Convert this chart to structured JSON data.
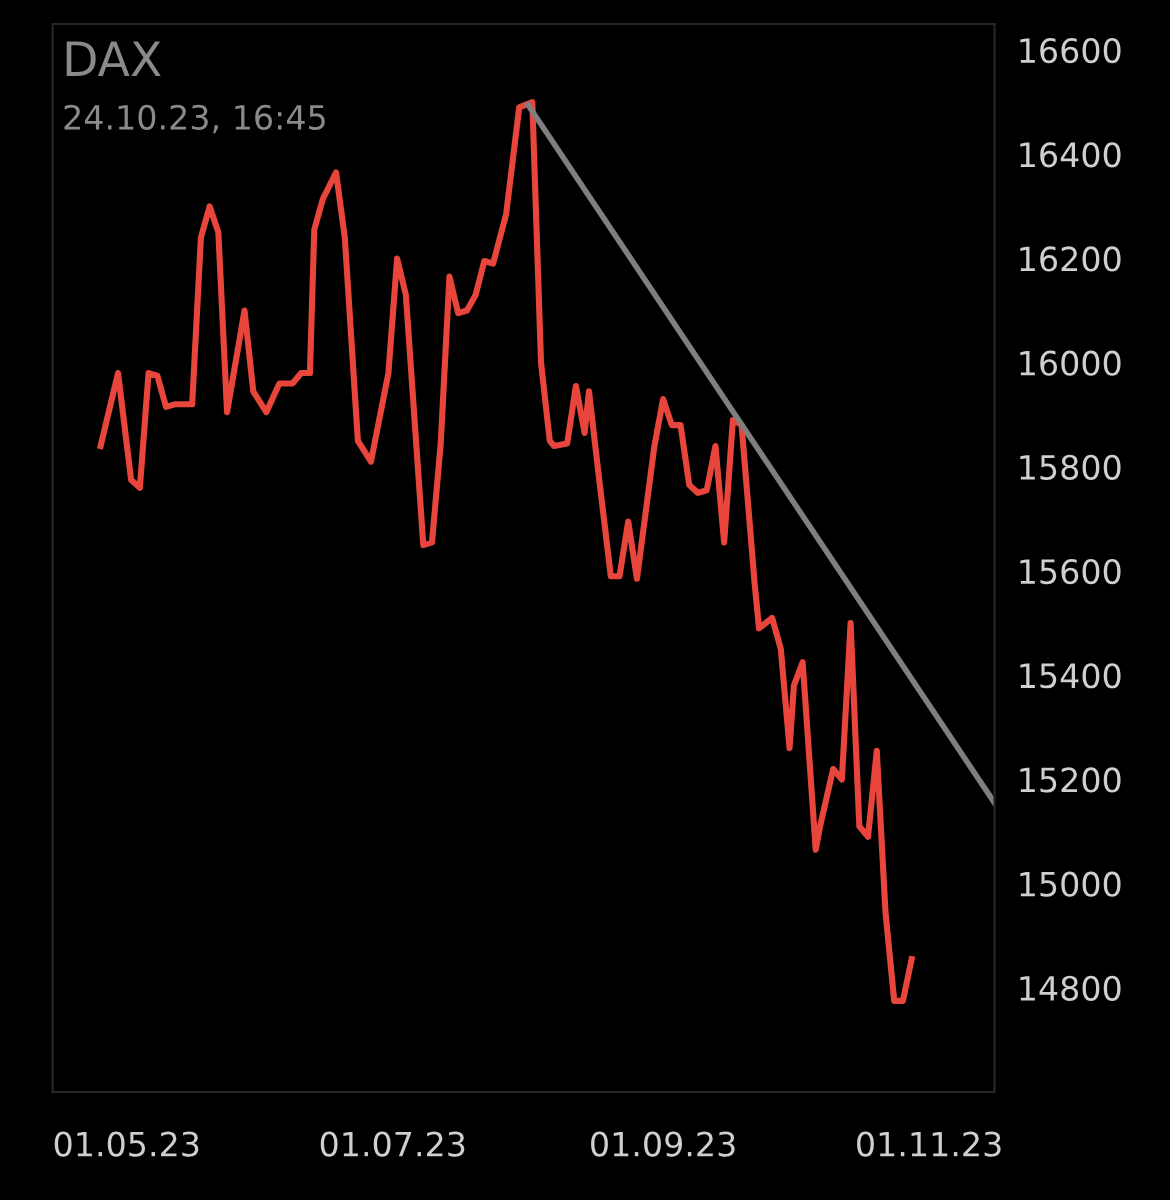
{
  "chart_data": {
    "type": "line",
    "title": "DAX",
    "subtitle": "24.10.23, 16:45",
    "series": [
      {
        "color": "#e8453c",
        "x": [
          "2023-04-25",
          "2023-04-29",
          "2023-05-02",
          "2023-05-04",
          "2023-05-06",
          "2023-05-08",
          "2023-05-10",
          "2023-05-12",
          "2023-05-16",
          "2023-05-18",
          "2023-05-20",
          "2023-05-22",
          "2023-05-24",
          "2023-05-28",
          "2023-05-30",
          "2023-06-02",
          "2023-06-05",
          "2023-06-08",
          "2023-06-10",
          "2023-06-12",
          "2023-06-13",
          "2023-06-15",
          "2023-06-18",
          "2023-06-20",
          "2023-06-23",
          "2023-06-26",
          "2023-06-30",
          "2023-07-02",
          "2023-07-04",
          "2023-07-08",
          "2023-07-10",
          "2023-07-12",
          "2023-07-14",
          "2023-07-16",
          "2023-07-18",
          "2023-07-20",
          "2023-07-22",
          "2023-07-24",
          "2023-07-27",
          "2023-07-30",
          "2023-08-02",
          "2023-08-04",
          "2023-08-06",
          "2023-08-07",
          "2023-08-10",
          "2023-08-12",
          "2023-08-14",
          "2023-08-15",
          "2023-08-17",
          "2023-08-20",
          "2023-08-22",
          "2023-08-24",
          "2023-08-26",
          "2023-08-30",
          "2023-09-01",
          "2023-09-03",
          "2023-09-05",
          "2023-09-07",
          "2023-09-09",
          "2023-09-11",
          "2023-09-13",
          "2023-09-15",
          "2023-09-17",
          "2023-09-19",
          "2023-09-22",
          "2023-09-23",
          "2023-09-26",
          "2023-09-28",
          "2023-09-30",
          "2023-10-01",
          "2023-10-03",
          "2023-10-06",
          "2023-10-07",
          "2023-10-10",
          "2023-10-12",
          "2023-10-14",
          "2023-10-16",
          "2023-10-18",
          "2023-10-20",
          "2023-10-22",
          "2023-10-24",
          "2023-10-26",
          "2023-10-28"
        ],
        "values": [
          15840,
          15980,
          15775,
          15760,
          15980,
          15975,
          15915,
          15920,
          15920,
          16240,
          16300,
          16250,
          15905,
          16100,
          15945,
          15905,
          15960,
          15960,
          15980,
          15980,
          16255,
          16315,
          16365,
          16240,
          15850,
          15810,
          15980,
          16200,
          16130,
          15650,
          15655,
          15845,
          16165,
          16095,
          16100,
          16130,
          16195,
          16190,
          16285,
          16490,
          16500,
          16000,
          15850,
          15840,
          15845,
          15955,
          15865,
          15945,
          15800,
          15590,
          15590,
          15695,
          15585,
          15840,
          15930,
          15880,
          15880,
          15765,
          15750,
          15755,
          15840,
          15655,
          15890,
          15880,
          15575,
          15490,
          15510,
          15450,
          15260,
          15380,
          15425,
          15065,
          15110,
          15220,
          15200,
          15500,
          15110,
          15090,
          15255,
          14945,
          14775,
          14775,
          14855
        ]
      },
      {
        "color": "#7f7f7f",
        "x": [
          "2023-08-01",
          "2023-11-16"
        ],
        "values": [
          16495,
          15155
        ]
      }
    ],
    "xticks": [
      {
        "value": "2023-05-01",
        "label": "01.05.23"
      },
      {
        "value": "2023-07-01",
        "label": "01.07.23"
      },
      {
        "value": "2023-09-01",
        "label": "01.09.23"
      },
      {
        "value": "2023-11-01",
        "label": "01.11.23"
      }
    ],
    "xlim": [
      "2023-04-14",
      "2023-11-16"
    ],
    "ylim": [
      14600,
      16650
    ],
    "yticks": [
      14800,
      15000,
      15200,
      15400,
      15600,
      15800,
      16000,
      16200,
      16400,
      16600
    ],
    "grid": false,
    "legend": false,
    "marker": "none",
    "line_style": "solid"
  }
}
